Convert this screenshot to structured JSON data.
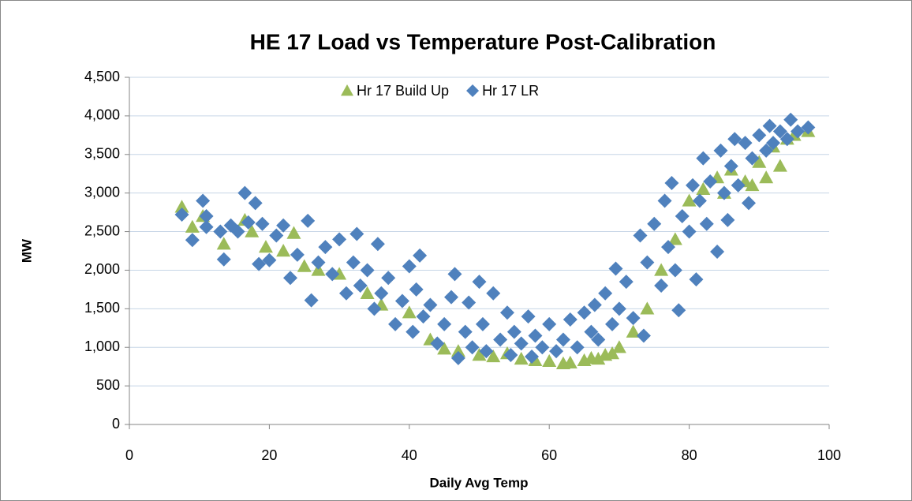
{
  "chart_data": {
    "type": "scatter",
    "title": "HE 17 Load vs Temperature Post-Calibration",
    "x_label": "Daily Avg Temp",
    "y_label": "MW",
    "xlim": [
      0,
      100
    ],
    "xticks": [
      0,
      20,
      40,
      60,
      80,
      100
    ],
    "ylim": [
      0,
      4500
    ],
    "yticks": [
      0,
      500,
      {
        "value": 1000,
        "label": "1,000"
      },
      {
        "value": 1500,
        "label": "1,500"
      },
      {
        "value": 2000,
        "label": "2,000"
      },
      {
        "value": 2500,
        "label": "2,500"
      },
      {
        "value": 3000,
        "label": "3,000"
      },
      {
        "value": 3500,
        "label": "3,500"
      },
      {
        "value": 4000,
        "label": "4,000"
      },
      {
        "value": 4500,
        "label": "4,500"
      }
    ],
    "grid": true,
    "legend": "top",
    "series": [
      {
        "name": "Hr 17 Build Up",
        "color": "#9bbb59",
        "marker": "triangle",
        "x": [
          7.5,
          9,
          10.5,
          13.5,
          16.5,
          17.5,
          19.5,
          22,
          23.5,
          25,
          27,
          30,
          34,
          36,
          40,
          43,
          45,
          47,
          50,
          52,
          54,
          56,
          58,
          60,
          62,
          63,
          65,
          66,
          67,
          68,
          69,
          70,
          72,
          74,
          76,
          78,
          80,
          82,
          84,
          85,
          86,
          88,
          89,
          90,
          91,
          92,
          93,
          94,
          95,
          97
        ],
        "values": [
          2820,
          2560,
          2700,
          2340,
          2650,
          2500,
          2300,
          2250,
          2480,
          2050,
          2000,
          1950,
          1700,
          1550,
          1450,
          1100,
          980,
          950,
          900,
          880,
          920,
          850,
          830,
          820,
          790,
          800,
          830,
          860,
          850,
          900,
          920,
          1000,
          1200,
          1500,
          2000,
          2400,
          2900,
          3050,
          3200,
          3000,
          3300,
          3150,
          3100,
          3400,
          3200,
          3600,
          3350,
          3700,
          3750,
          3800
        ]
      },
      {
        "name": "Hr 17 LR",
        "color": "#4f81bd",
        "marker": "diamond",
        "x": [
          7.5,
          9,
          10.5,
          11,
          11,
          13,
          13.5,
          14.5,
          15.5,
          16.5,
          17,
          18,
          18.5,
          19,
          20,
          21,
          22,
          23,
          24,
          25.5,
          26,
          27,
          28,
          29,
          30,
          31,
          32,
          32.5,
          33,
          34,
          35,
          35.5,
          36,
          37,
          38,
          39,
          40,
          40.5,
          41,
          41.5,
          42,
          43,
          44,
          45,
          46,
          46.5,
          47,
          48,
          48.5,
          49,
          50,
          50.5,
          51,
          52,
          53,
          54,
          54.5,
          55,
          56,
          57,
          57.5,
          58,
          59,
          60,
          61,
          62,
          63,
          64,
          65,
          66,
          66.5,
          67,
          68,
          69,
          69.5,
          70,
          71,
          72,
          73,
          73.5,
          74,
          75,
          76,
          76.5,
          77,
          77.5,
          78,
          78.5,
          79,
          80,
          80.5,
          81,
          81.5,
          82,
          82.5,
          83,
          84,
          84.5,
          85,
          85.5,
          86,
          86.5,
          87,
          88,
          88.5,
          89,
          90,
          91,
          91.5,
          92,
          93,
          94,
          94.5,
          95.5,
          97
        ],
        "values": [
          2720,
          2390,
          2900,
          2700,
          2560,
          2500,
          2140,
          2580,
          2500,
          3000,
          2620,
          2870,
          2080,
          2600,
          2130,
          2450,
          2580,
          1900,
          2200,
          2640,
          1610,
          2100,
          2300,
          1950,
          2400,
          1700,
          2100,
          2470,
          1800,
          2000,
          1500,
          2340,
          1700,
          1900,
          1300,
          1600,
          2050,
          1200,
          1750,
          2190,
          1400,
          1550,
          1050,
          1300,
          1650,
          1950,
          860,
          1200,
          1580,
          1000,
          1850,
          1300,
          950,
          1700,
          1100,
          1450,
          900,
          1200,
          1050,
          1400,
          880,
          1150,
          1000,
          1300,
          950,
          1100,
          1360,
          1000,
          1450,
          1200,
          1550,
          1100,
          1700,
          1300,
          2020,
          1500,
          1850,
          1380,
          2450,
          1150,
          2100,
          2600,
          1800,
          2900,
          2300,
          3130,
          2000,
          1480,
          2700,
          2500,
          3100,
          1880,
          2900,
          3450,
          2600,
          3150,
          2240,
          3550,
          3000,
          2650,
          3350,
          3700,
          3100,
          3650,
          2870,
          3450,
          3750,
          3550,
          3870,
          3650,
          3800,
          3700,
          3950,
          3800,
          3850
        ]
      }
    ]
  }
}
